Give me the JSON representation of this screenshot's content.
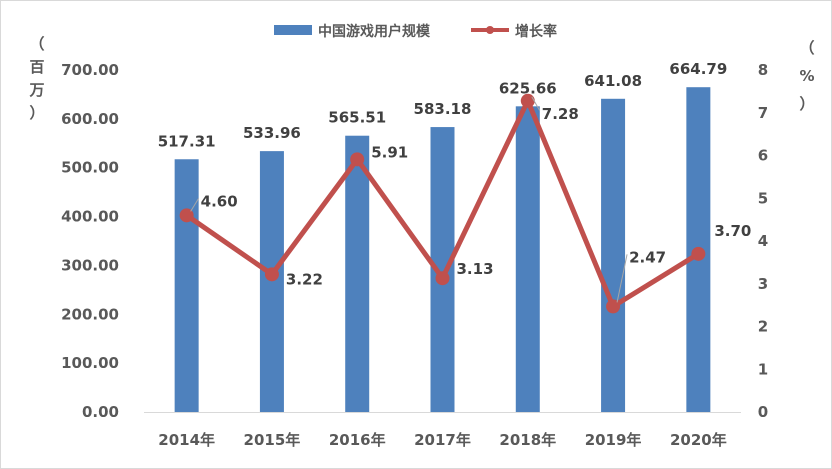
{
  "chart_data": {
    "type": "bar",
    "categories": [
      "2014年",
      "2015年",
      "2016年",
      "2017年",
      "2018年",
      "2019年",
      "2020年"
    ],
    "series": [
      {
        "name": "中国游戏用户规模",
        "type": "bar",
        "axis": "left",
        "values": [
          517.31,
          533.96,
          565.51,
          583.18,
          625.66,
          641.08,
          664.79
        ],
        "labels": [
          "517.31",
          "533.96",
          "565.51",
          "583.18",
          "625.66",
          "641.08",
          "664.79"
        ],
        "color": "#4e81bd"
      },
      {
        "name": "增长率",
        "type": "line",
        "axis": "right",
        "values": [
          4.6,
          3.22,
          5.91,
          3.13,
          7.28,
          2.47,
          3.7
        ],
        "labels": [
          "4.60",
          "3.22",
          "5.91",
          "3.13",
          "7.28",
          "2.47",
          "3.70"
        ],
        "color": "#c0504d"
      }
    ],
    "y_left": {
      "unit_chars": [
        "（",
        "百",
        "万",
        "）"
      ],
      "ylim": [
        0,
        700
      ],
      "ticks": [
        "0.00",
        "100.00",
        "200.00",
        "300.00",
        "400.00",
        "500.00",
        "600.00",
        "700.00"
      ]
    },
    "y_right": {
      "unit_chars": [
        "（",
        "%",
        "）"
      ],
      "ylim": [
        0,
        8
      ],
      "ticks": [
        "0",
        "1",
        "2",
        "3",
        "4",
        "5",
        "6",
        "7",
        "8"
      ]
    },
    "grid": false,
    "legend_position": "top-center"
  }
}
